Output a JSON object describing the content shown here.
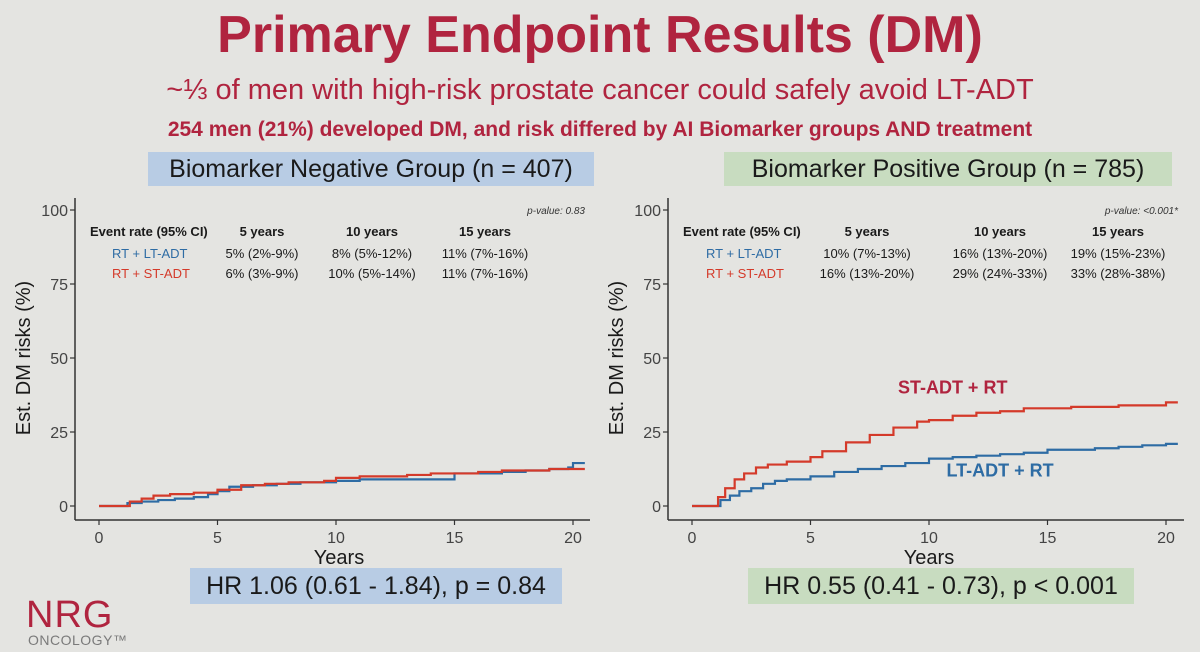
{
  "header": {
    "title": "Primary Endpoint Results (DM)",
    "subtitle": "~⅓ of men with high-risk prostate cancer could safely avoid LT-ADT",
    "subsubtitle": "254 men (21%) developed DM, and risk differed by AI Biomarker groups AND treatment"
  },
  "groups": {
    "negative": {
      "title": "Biomarker Negative Group (n = 407)",
      "hr": "HR 1.06 (0.61 - 1.84), p = 0.84"
    },
    "positive": {
      "title": "Biomarker Positive Group (n = 785)",
      "hr": "HR 0.55 (0.41 - 0.73), p < 0.001"
    }
  },
  "logo": {
    "name": "NRG",
    "sub": "ONCOLOGY™"
  },
  "colors": {
    "title": "#b0243f",
    "lt_adt": "#2e6ca4",
    "st_adt": "#d43a2a",
    "negative_box": "#b8cce4",
    "positive_box": "#c8dcc0"
  },
  "chart_data": [
    {
      "type": "line",
      "ylabel": "Est. DM risks (%)",
      "xlabel": "Years",
      "xlim": [
        0,
        20.5
      ],
      "ylim": [
        0,
        100
      ],
      "xticks": [
        "0",
        "5",
        "10",
        "15",
        "20"
      ],
      "yticks": [
        "0",
        "25",
        "50",
        "75",
        "100"
      ],
      "grid": false,
      "pvalue": "p-value: 0.83",
      "table": {
        "header": [
          "Event rate (95% CI)",
          "5 years",
          "10 years",
          "15 years"
        ],
        "rows": [
          {
            "label": "RT + LT-ADT",
            "color": "#2e6ca4",
            "values": [
              "5% (2%-9%)",
              "8% (5%-12%)",
              "11% (7%-16%)"
            ]
          },
          {
            "label": "RT + ST-ADT",
            "color": "#d43a2a",
            "values": [
              "6% (3%-9%)",
              "10% (5%-14%)",
              "11% (7%-16%)"
            ]
          }
        ]
      },
      "series": [
        {
          "key": "lt",
          "color": "#2e6ca4",
          "x": [
            0,
            0.8,
            1.2,
            1.8,
            2.5,
            3.2,
            4,
            4.6,
            5,
            5.5,
            6.5,
            7.5,
            8.5,
            9.5,
            10,
            11,
            12,
            13,
            14,
            14.5,
            15,
            16,
            17,
            18,
            19,
            19.8,
            20,
            20.5
          ],
          "y": [
            0,
            0,
            1,
            1.5,
            2,
            2.5,
            3,
            4,
            5,
            6.5,
            7,
            7.5,
            8,
            8,
            8.5,
            9,
            9,
            9,
            9,
            9,
            11,
            11,
            11.5,
            12,
            12.5,
            13,
            14.5,
            14.5
          ]
        },
        {
          "key": "st",
          "color": "#d43a2a",
          "x": [
            0,
            0.9,
            1.3,
            1.8,
            2.3,
            3,
            4,
            5,
            6,
            7,
            8,
            9.5,
            10,
            11,
            12,
            13,
            14,
            15,
            16,
            17,
            18,
            19,
            20,
            20.5
          ],
          "y": [
            0,
            0,
            1.5,
            2.5,
            3.5,
            4,
            4.5,
            5.5,
            7,
            7.5,
            8,
            8.5,
            9.5,
            10,
            10,
            10.5,
            11,
            11,
            11.5,
            12,
            12,
            12.5,
            12.5,
            12.5
          ]
        }
      ]
    },
    {
      "type": "line",
      "ylabel": "Est. DM risks (%)",
      "xlabel": "Years",
      "xlim": [
        0,
        20.5
      ],
      "ylim": [
        0,
        100
      ],
      "xticks": [
        "0",
        "5",
        "10",
        "15",
        "20"
      ],
      "yticks": [
        "0",
        "25",
        "50",
        "75",
        "100"
      ],
      "grid": false,
      "pvalue": "p-value: <0.001*",
      "table": {
        "header": [
          "Event rate (95% CI)",
          "5 years",
          "10 years",
          "15 years"
        ],
        "rows": [
          {
            "label": "RT + LT-ADT",
            "color": "#2e6ca4",
            "values": [
              "10% (7%-13%)",
              "16% (13%-20%)",
              "19% (15%-23%)"
            ]
          },
          {
            "label": "RT + ST-ADT",
            "color": "#d43a2a",
            "values": [
              "16% (13%-20%)",
              "29% (24%-33%)",
              "33% (28%-38%)"
            ]
          }
        ]
      },
      "annotations": [
        {
          "text": "ST-ADT + RT",
          "color": "#b0243f",
          "x": 11,
          "y": 38
        },
        {
          "text": "LT-ADT + RT",
          "color": "#2e6ca4",
          "x": 13,
          "y": 10
        }
      ],
      "series": [
        {
          "key": "lt",
          "color": "#2e6ca4",
          "x": [
            0,
            0.8,
            1.2,
            1.6,
            2,
            2.5,
            3,
            3.5,
            4,
            5,
            6,
            7,
            8,
            9,
            10,
            11,
            12,
            13,
            14,
            15,
            16,
            17,
            18,
            19,
            20,
            20.5
          ],
          "y": [
            0,
            0,
            2,
            3.5,
            5,
            6,
            7.5,
            8.5,
            9,
            10,
            11.5,
            12.5,
            13.5,
            14.5,
            16,
            16.5,
            17,
            17.5,
            18,
            19,
            19,
            19.5,
            20,
            20.5,
            21,
            21
          ]
        },
        {
          "key": "st",
          "color": "#d43a2a",
          "x": [
            0,
            0.8,
            1.1,
            1.4,
            1.8,
            2.2,
            2.7,
            3.2,
            4,
            5,
            5.5,
            6.5,
            7.5,
            8.5,
            9.5,
            10,
            11,
            12,
            13,
            14,
            15,
            16,
            17,
            18,
            19,
            20,
            20.5
          ],
          "y": [
            0,
            0,
            3,
            6,
            9,
            11,
            13,
            14,
            15,
            16.5,
            18.5,
            21.5,
            24,
            26.5,
            28.5,
            29,
            30.5,
            31.5,
            32,
            33,
            33,
            33.5,
            33.5,
            34,
            34,
            35,
            35
          ]
        }
      ]
    }
  ]
}
